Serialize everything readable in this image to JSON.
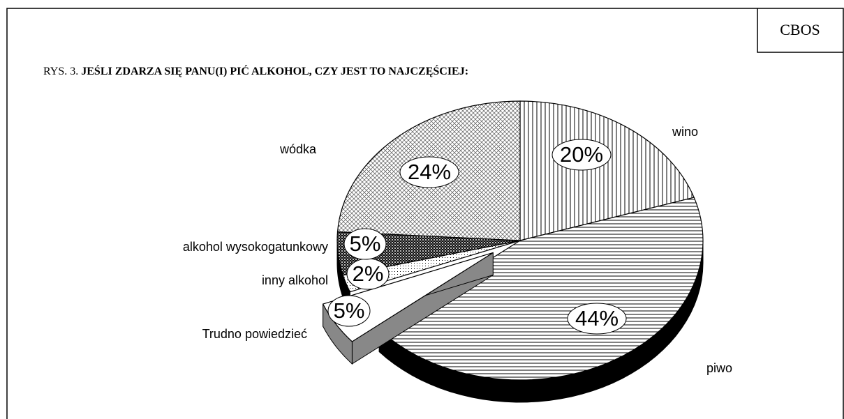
{
  "source": "CBOS",
  "chart_data": {
    "type": "pie",
    "label_prefix": "RYS. 3.",
    "title": "JEŚLI ZDARZA SIĘ PANU(I) PIĆ ALKOHOL, CZY JEST TO NAJCZĘŚCIEJ:",
    "categories": [
      "wino",
      "piwo",
      "Trudno powiedzieć",
      "inny alkohol",
      "alkohol wysokogatunkowy",
      "wódka"
    ],
    "values": [
      20,
      44,
      5,
      2,
      5,
      24
    ],
    "value_labels": [
      "20%",
      "44%",
      "5%",
      "2%",
      "5%",
      "24%"
    ]
  }
}
